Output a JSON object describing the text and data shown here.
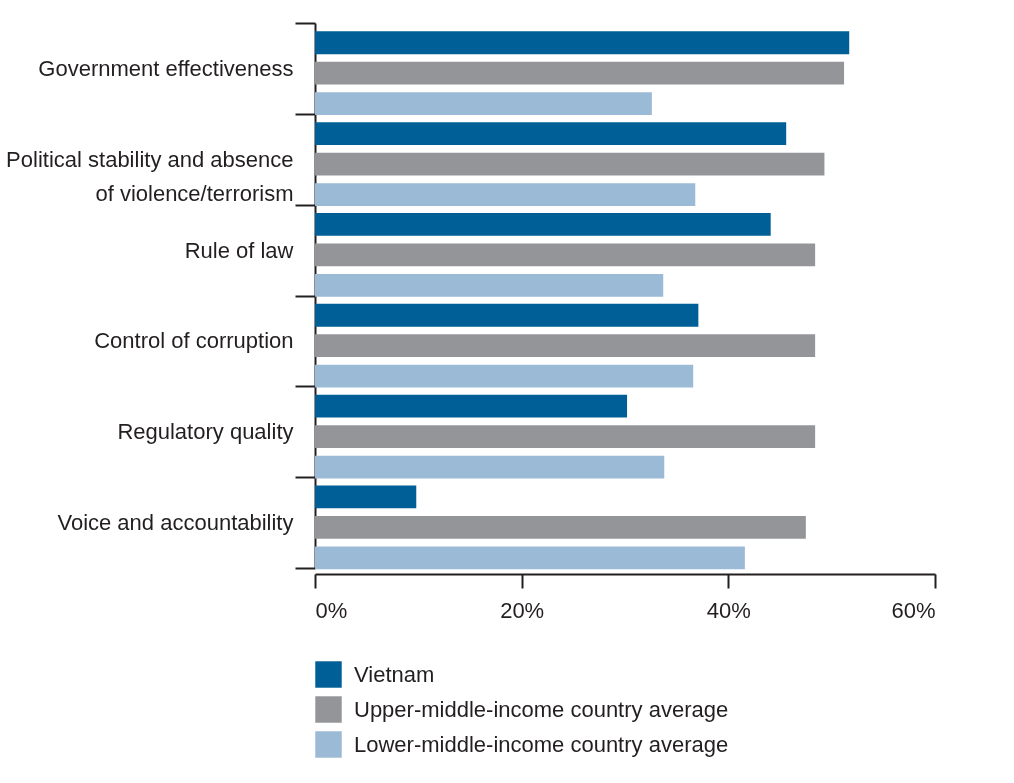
{
  "chart_data": {
    "type": "bar",
    "orientation": "horizontal",
    "categories": [
      "Government effectiveness",
      "Political stability and absence\nof violence/terrorism",
      "Rule of law",
      "Control of corruption",
      "Regulatory quality",
      "Voice and accountability"
    ],
    "series": [
      {
        "name": "Vietnam",
        "color": "#005f96",
        "values": [
          51.7,
          45.6,
          44.1,
          37.1,
          30.2,
          9.8
        ]
      },
      {
        "name": "Upper-middle-income country average",
        "color": "#939598",
        "values": [
          51.2,
          49.3,
          48.4,
          48.4,
          48.4,
          47.5
        ]
      },
      {
        "name": "Lower-middle-income country average",
        "color": "#9bbad5",
        "values": [
          32.6,
          36.8,
          33.7,
          36.6,
          33.8,
          41.6
        ]
      }
    ],
    "xlim": [
      0,
      60
    ],
    "xticks": [
      {
        "value": 0,
        "label": "0%"
      },
      {
        "value": 20,
        "label": "20%"
      },
      {
        "value": 40,
        "label": "40%"
      },
      {
        "value": 60,
        "label": "60%"
      }
    ],
    "grid": false,
    "legend": "bottom"
  }
}
